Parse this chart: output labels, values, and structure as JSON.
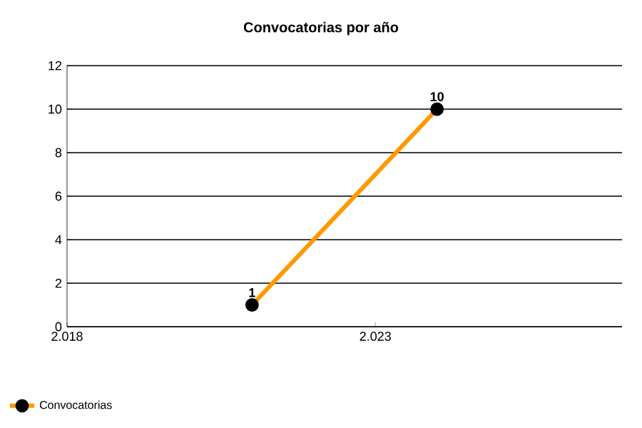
{
  "chart_data": {
    "type": "line",
    "title": "Convocatorias por año",
    "x": [
      2021,
      2024
    ],
    "series": [
      {
        "name": "Convocatorias",
        "color": "#ff9900",
        "values": [
          1,
          10
        ]
      }
    ],
    "xlim": [
      2018,
      2027
    ],
    "xticks": [
      {
        "value": 2018,
        "label": "2.018"
      },
      {
        "value": 2023,
        "label": "2.023"
      }
    ],
    "ylim": [
      0,
      12
    ],
    "yticks": [
      0,
      2,
      4,
      6,
      8,
      10,
      12
    ],
    "grid": "y",
    "legend": "bottom left",
    "marker": "circle",
    "line_style": "solid",
    "data_labels": true
  }
}
